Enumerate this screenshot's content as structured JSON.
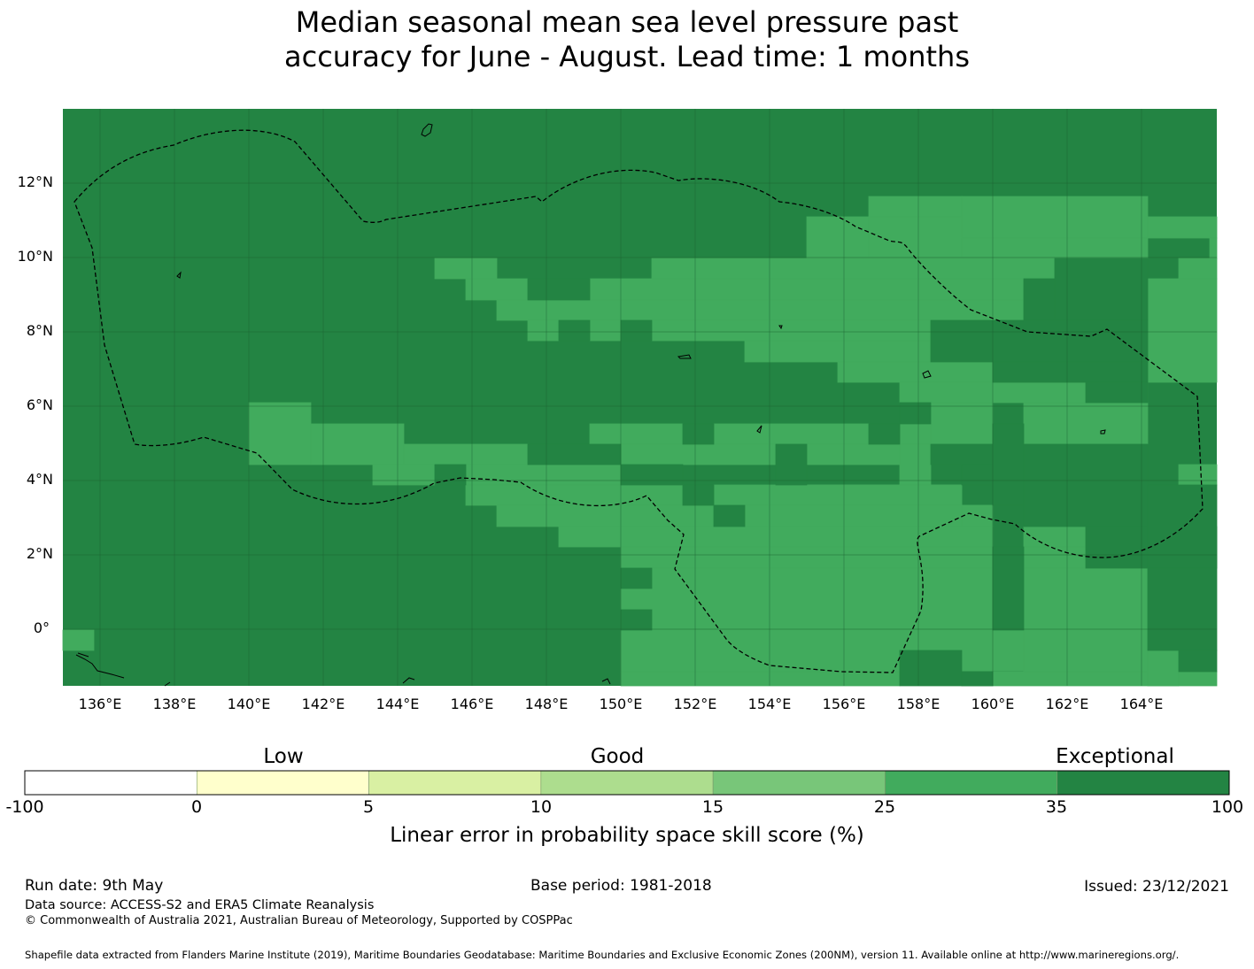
{
  "title": {
    "line1": "Median seasonal mean sea level pressure past",
    "line2": "accuracy for June - August. Lead time: 1 months"
  },
  "map": {
    "lat_labels": [
      "12°N",
      "10°N",
      "8°N",
      "6°N",
      "4°N",
      "2°N",
      "0°"
    ],
    "lon_labels": [
      "136°E",
      "138°E",
      "140°E",
      "142°E",
      "144°E",
      "146°E",
      "148°E",
      "150°E",
      "152°E",
      "154°E",
      "156°E",
      "158°E",
      "160°E",
      "162°E",
      "164°E"
    ],
    "colors": {
      "exceptional": "#238443",
      "very_good": "#41ab5d",
      "border": "#000000"
    }
  },
  "colorbar": {
    "categories": [
      "Low",
      "Good",
      "Exceptional"
    ],
    "ticks": [
      "-100",
      "0",
      "5",
      "10",
      "15",
      "25",
      "35",
      "100"
    ],
    "colors": [
      "#ffffff",
      "#ffffcc",
      "#d9f0a3",
      "#addd8e",
      "#78c679",
      "#41ab5d",
      "#238443"
    ],
    "title": "Linear error in probability space skill score (%)"
  },
  "footer": {
    "run_date": "Run date: 9th May",
    "base_period": "Base period: 1981-2018",
    "issued": "Issued: 23/12/2021",
    "data_source": "Data source: ACCESS-S2 and ERA5 Climate Reanalysis",
    "copyright": "© Commonwealth of Australia 2021, Australian Bureau of Meteorology, Supported by COSPPac",
    "shapefile": "Shapefile data extracted from Flanders Marine Institute (2019), Maritime Boundaries Geodatabase: Maritime Boundaries and Exclusive Economic Zones (200NM), version 11. Available online at http://www.marineregions.org/."
  }
}
